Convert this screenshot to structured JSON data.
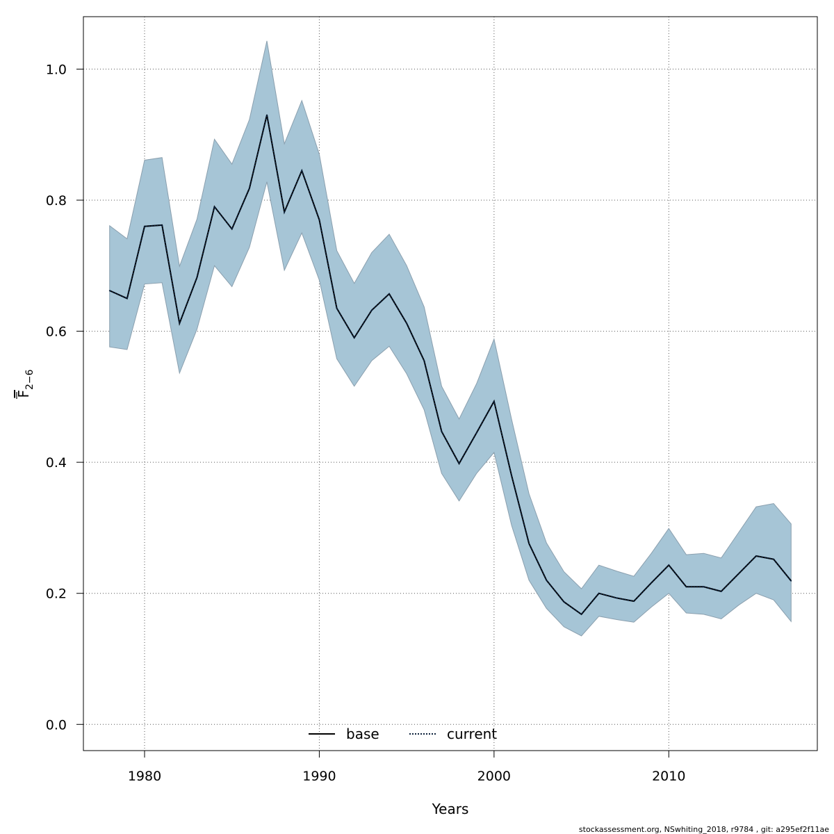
{
  "chart_data": {
    "type": "area",
    "xlabel": "Years",
    "ylabel": "F",
    "ylabel_subscript": "2−6",
    "xlim": [
      1976.5,
      2018.5
    ],
    "ylim": [
      -0.04,
      1.08
    ],
    "x_ticks": [
      1980,
      1990,
      2000,
      2010
    ],
    "x_tick_labels": [
      "1980",
      "1990",
      "2000",
      "2010"
    ],
    "y_ticks": [
      0.0,
      0.2,
      0.4,
      0.6,
      0.8,
      1.0
    ],
    "y_tick_labels": [
      "0.0",
      "0.2",
      "0.4",
      "0.6",
      "0.8",
      "1.0"
    ],
    "grid": true,
    "legend_position": "bottom-center",
    "x": [
      1978,
      1979,
      1980,
      1981,
      1982,
      1983,
      1984,
      1985,
      1986,
      1987,
      1988,
      1989,
      1990,
      1991,
      1992,
      1993,
      1994,
      1995,
      1996,
      1997,
      1998,
      1999,
      2000,
      2001,
      2002,
      2003,
      2004,
      2005,
      2006,
      2007,
      2008,
      2009,
      2010,
      2011,
      2012,
      2013,
      2014,
      2015,
      2016,
      2017
    ],
    "series": [
      {
        "name": "base",
        "line_style": "solid",
        "values": [
          0.662,
          0.65,
          0.76,
          0.762,
          0.612,
          0.682,
          0.79,
          0.756,
          0.818,
          0.93,
          0.782,
          0.845,
          0.77,
          0.635,
          0.59,
          0.632,
          0.657,
          0.612,
          0.555,
          0.447,
          0.398,
          0.445,
          0.493,
          0.38,
          0.276,
          0.22,
          0.187,
          0.168,
          0.2,
          0.193,
          0.188,
          0.216,
          0.243,
          0.21,
          0.21,
          0.203,
          0.23,
          0.257,
          0.252,
          0.219
        ]
      },
      {
        "name": "current",
        "line_style": "dotted",
        "values": [
          0.662,
          0.65,
          0.76,
          0.762,
          0.612,
          0.682,
          0.79,
          0.756,
          0.818,
          0.93,
          0.782,
          0.845,
          0.77,
          0.635,
          0.59,
          0.632,
          0.657,
          0.612,
          0.555,
          0.447,
          0.398,
          0.445,
          0.493,
          0.38,
          0.276,
          0.22,
          0.187,
          0.168,
          0.2,
          0.193,
          0.188,
          0.216,
          0.243,
          0.21,
          0.21,
          0.203,
          0.23,
          0.257,
          0.252,
          0.219
        ]
      }
    ],
    "band": {
      "lower": [
        0.576,
        0.572,
        0.672,
        0.674,
        0.536,
        0.603,
        0.7,
        0.668,
        0.728,
        0.828,
        0.693,
        0.75,
        0.678,
        0.558,
        0.516,
        0.555,
        0.577,
        0.535,
        0.48,
        0.383,
        0.341,
        0.383,
        0.415,
        0.304,
        0.22,
        0.177,
        0.149,
        0.135,
        0.165,
        0.16,
        0.156,
        0.179,
        0.2,
        0.17,
        0.168,
        0.161,
        0.182,
        0.2,
        0.19,
        0.157
      ],
      "upper": [
        0.761,
        0.741,
        0.861,
        0.865,
        0.699,
        0.771,
        0.893,
        0.855,
        0.923,
        1.043,
        0.886,
        0.952,
        0.87,
        0.723,
        0.673,
        0.72,
        0.748,
        0.7,
        0.637,
        0.516,
        0.466,
        0.52,
        0.588,
        0.466,
        0.352,
        0.277,
        0.233,
        0.207,
        0.243,
        0.234,
        0.226,
        0.261,
        0.299,
        0.259,
        0.261,
        0.254,
        0.293,
        0.332,
        0.337,
        0.306
      ]
    },
    "colors": {
      "band_fill": "#a6c5d6",
      "band_stroke": "#8a9fae",
      "base_line": "#000000",
      "current_line": "#0a1f3a",
      "grid": "#555555"
    }
  },
  "footer": {
    "credit": "stockassessment.org, NSwhiting_2018, r9784 , git: a295ef2f11ae"
  }
}
